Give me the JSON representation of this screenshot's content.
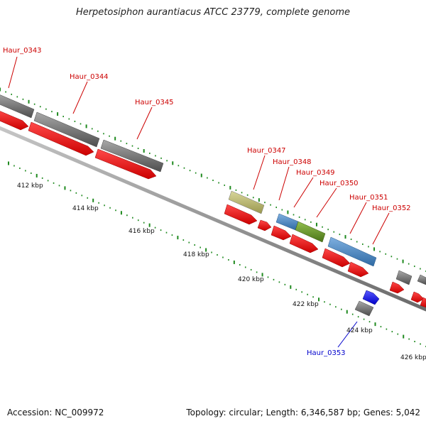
{
  "header": {
    "title": "Herpetosiphon aurantiacus ATCC 23779, complete genome"
  },
  "footer": {
    "accession": "Accession: NC_009972",
    "summary": "Topology: circular; Length: 6,346,587 bp; Genes: 5,042"
  },
  "colors": {
    "cds_forward": "#ff0000",
    "gene_grey": "#6b6b6b",
    "gene_tan": "#b5b36a",
    "gene_steelblue": "#4a86c0",
    "gene_olive": "#6a9428",
    "gene_blue": "#1a1aff",
    "backbone": "#8a8a8a",
    "tick": "#1f8a1f",
    "label_red": "#cc0000",
    "label_blue": "#0000cc"
  },
  "ruler": {
    "labels": [
      "412 kbp",
      "414 kbp",
      "416 kbp",
      "418 kbp",
      "420 kbp",
      "422 kbp",
      "424 kbp",
      "426 kbp"
    ]
  },
  "gene_labels": [
    {
      "text": "Haur_0343",
      "color": "red"
    },
    {
      "text": "Haur_0344",
      "color": "red"
    },
    {
      "text": "Haur_0345",
      "color": "red"
    },
    {
      "text": "Haur_0347",
      "color": "red"
    },
    {
      "text": "Haur_0348",
      "color": "red"
    },
    {
      "text": "Haur_0349",
      "color": "red"
    },
    {
      "text": "Haur_0350",
      "color": "red"
    },
    {
      "text": "Haur_0351",
      "color": "red"
    },
    {
      "text": "Haur_0352",
      "color": "red"
    },
    {
      "text": "Haur_0353",
      "color": "blue"
    }
  ]
}
